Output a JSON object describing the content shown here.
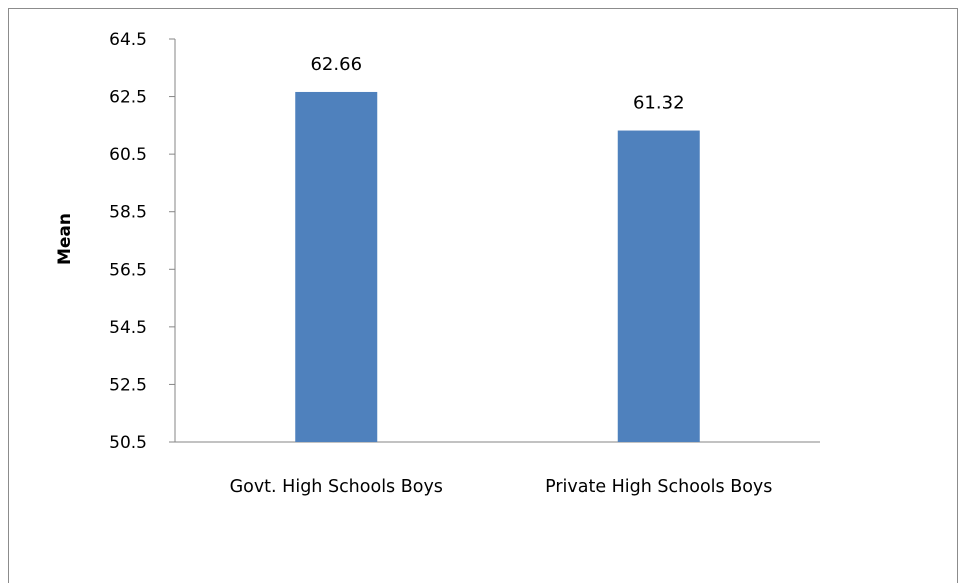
{
  "chart_data": {
    "type": "bar",
    "categories": [
      "Govt. High Schools Boys",
      "Private High Schools Boys"
    ],
    "values": [
      62.66,
      61.32
    ],
    "data_labels": [
      "62.66",
      "61.32"
    ],
    "title": "",
    "xlabel": "",
    "ylabel": "Mean",
    "ylim": [
      50.5,
      64.5
    ],
    "yticks": [
      50.5,
      52.5,
      54.5,
      56.5,
      58.5,
      60.5,
      62.5,
      64.5
    ],
    "ytick_labels": [
      "50.5",
      "52.5",
      "54.5",
      "56.5",
      "58.5",
      "60.5",
      "62.5",
      "64.5"
    ],
    "grid": false,
    "legend": "none",
    "bar_color": "#4f81bd"
  }
}
